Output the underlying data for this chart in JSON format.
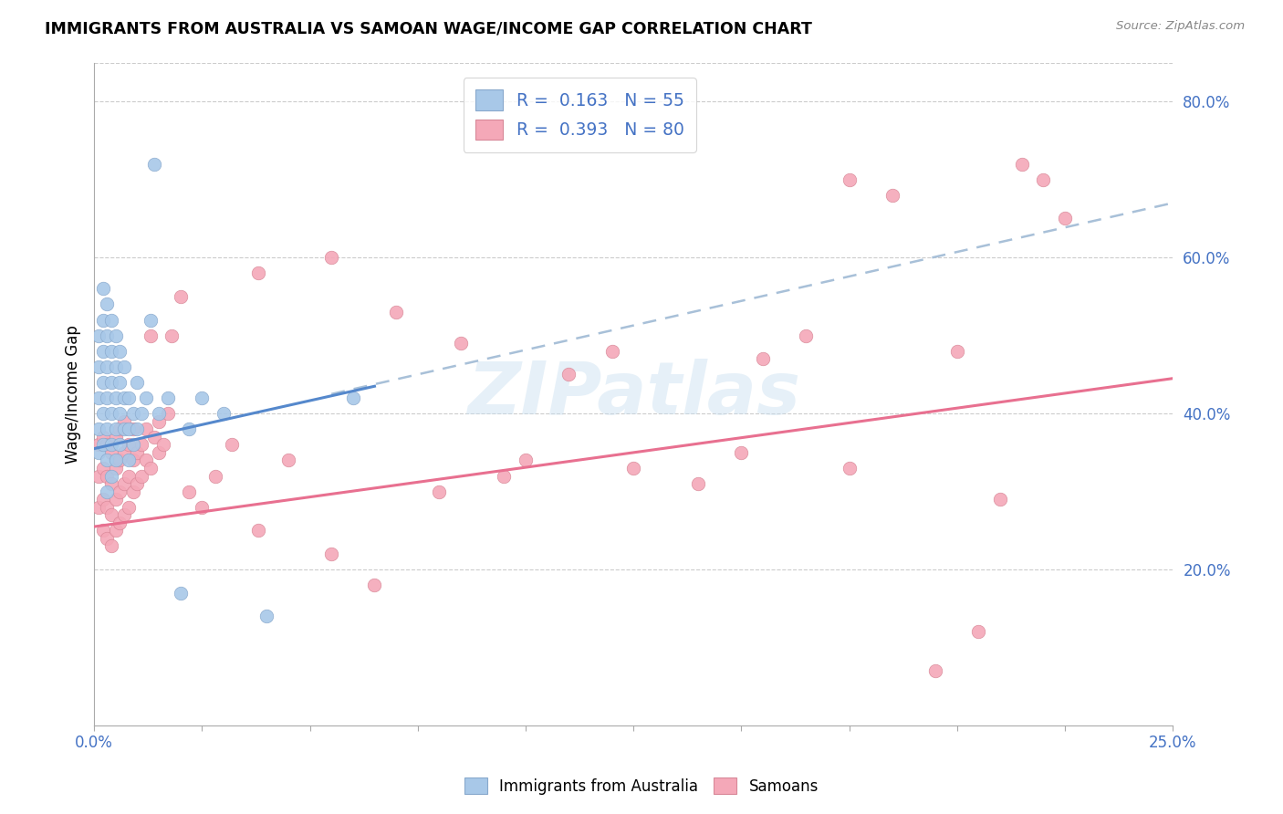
{
  "title": "IMMIGRANTS FROM AUSTRALIA VS SAMOAN WAGE/INCOME GAP CORRELATION CHART",
  "source": "Source: ZipAtlas.com",
  "ylabel": "Wage/Income Gap",
  "watermark": "ZIPatlas",
  "blue_color": "#a8c8e8",
  "pink_color": "#f4a8b8",
  "blue_line_color": "#5588cc",
  "pink_line_color": "#e87090",
  "dashed_line_color": "#a8c0d8",
  "text_color": "#4472c4",
  "xlim": [
    0,
    0.25
  ],
  "ylim": [
    0,
    0.85
  ],
  "blue_scatter": {
    "x": [
      0.001,
      0.001,
      0.001,
      0.001,
      0.001,
      0.002,
      0.002,
      0.002,
      0.002,
      0.002,
      0.002,
      0.003,
      0.003,
      0.003,
      0.003,
      0.003,
      0.003,
      0.003,
      0.004,
      0.004,
      0.004,
      0.004,
      0.004,
      0.004,
      0.005,
      0.005,
      0.005,
      0.005,
      0.005,
      0.006,
      0.006,
      0.006,
      0.006,
      0.007,
      0.007,
      0.007,
      0.008,
      0.008,
      0.008,
      0.009,
      0.009,
      0.01,
      0.01,
      0.011,
      0.012,
      0.013,
      0.014,
      0.015,
      0.017,
      0.02,
      0.022,
      0.025,
      0.03,
      0.04,
      0.06
    ],
    "y": [
      0.35,
      0.38,
      0.42,
      0.46,
      0.5,
      0.36,
      0.4,
      0.44,
      0.48,
      0.52,
      0.56,
      0.3,
      0.34,
      0.38,
      0.42,
      0.46,
      0.5,
      0.54,
      0.32,
      0.36,
      0.4,
      0.44,
      0.48,
      0.52,
      0.34,
      0.38,
      0.42,
      0.46,
      0.5,
      0.36,
      0.4,
      0.44,
      0.48,
      0.38,
      0.42,
      0.46,
      0.34,
      0.38,
      0.42,
      0.36,
      0.4,
      0.38,
      0.44,
      0.4,
      0.42,
      0.52,
      0.72,
      0.4,
      0.42,
      0.17,
      0.38,
      0.42,
      0.4,
      0.14,
      0.42
    ]
  },
  "pink_scatter": {
    "x": [
      0.001,
      0.001,
      0.001,
      0.002,
      0.002,
      0.002,
      0.002,
      0.003,
      0.003,
      0.003,
      0.003,
      0.004,
      0.004,
      0.004,
      0.004,
      0.005,
      0.005,
      0.005,
      0.005,
      0.006,
      0.006,
      0.006,
      0.006,
      0.007,
      0.007,
      0.007,
      0.007,
      0.008,
      0.008,
      0.008,
      0.009,
      0.009,
      0.009,
      0.01,
      0.01,
      0.011,
      0.011,
      0.012,
      0.012,
      0.013,
      0.013,
      0.014,
      0.015,
      0.015,
      0.016,
      0.017,
      0.018,
      0.02,
      0.022,
      0.025,
      0.028,
      0.032,
      0.038,
      0.045,
      0.055,
      0.065,
      0.08,
      0.095,
      0.11,
      0.125,
      0.14,
      0.155,
      0.165,
      0.175,
      0.185,
      0.195,
      0.205,
      0.215,
      0.22,
      0.225,
      0.038,
      0.055,
      0.07,
      0.085,
      0.1,
      0.12,
      0.15,
      0.175,
      0.2,
      0.21
    ],
    "y": [
      0.28,
      0.32,
      0.36,
      0.25,
      0.29,
      0.33,
      0.37,
      0.24,
      0.28,
      0.32,
      0.36,
      0.23,
      0.27,
      0.31,
      0.35,
      0.25,
      0.29,
      0.33,
      0.37,
      0.26,
      0.3,
      0.34,
      0.38,
      0.27,
      0.31,
      0.35,
      0.39,
      0.28,
      0.32,
      0.36,
      0.3,
      0.34,
      0.38,
      0.31,
      0.35,
      0.32,
      0.36,
      0.34,
      0.38,
      0.33,
      0.5,
      0.37,
      0.35,
      0.39,
      0.36,
      0.4,
      0.5,
      0.55,
      0.3,
      0.28,
      0.32,
      0.36,
      0.58,
      0.34,
      0.22,
      0.18,
      0.3,
      0.32,
      0.45,
      0.33,
      0.31,
      0.47,
      0.5,
      0.7,
      0.68,
      0.07,
      0.12,
      0.72,
      0.7,
      0.65,
      0.25,
      0.6,
      0.53,
      0.49,
      0.34,
      0.48,
      0.35,
      0.33,
      0.48,
      0.29
    ]
  }
}
